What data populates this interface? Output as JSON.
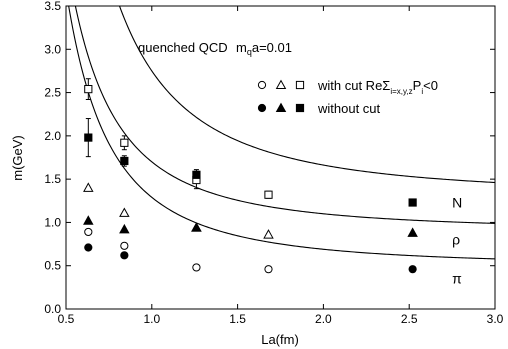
{
  "chart_data": {
    "type": "scatter",
    "title": "quenched QCD",
    "param_prefix": "m",
    "param_sub": "q",
    "param_suffix": "a=0.01",
    "xlabel": "La(fm)",
    "ylabel": "m(GeV)",
    "xlim": [
      0.5,
      3.0
    ],
    "ylim": [
      0.0,
      3.5
    ],
    "x_ticks": [
      0.5,
      1.0,
      1.5,
      2.0,
      2.5,
      3.0
    ],
    "y_ticks": [
      0.0,
      0.5,
      1.0,
      1.5,
      2.0,
      2.5,
      3.0,
      3.5
    ],
    "x_tick_labels": [
      "0.5",
      "1.0",
      "1.5",
      "2.0",
      "2.5",
      "3.0"
    ],
    "y_tick_labels": [
      "0.0",
      "0.5",
      "1.0",
      "1.5",
      "2.0",
      "2.5",
      "3.0",
      "3.5"
    ],
    "legend": {
      "with_cut": {
        "text_main": "with cut ReΣ",
        "sub1": "i=x,y,z",
        "mid": "P",
        "sub2": "i",
        "tail": "<0"
      },
      "without_cut": "without cut"
    },
    "series": [
      {
        "name": "π",
        "cut": "with",
        "marker": "circle-open",
        "x": [
          0.63,
          0.84,
          1.26,
          1.68
        ],
        "y": [
          0.89,
          0.73,
          0.48,
          0.46
        ]
      },
      {
        "name": "π",
        "cut": "without",
        "marker": "circle-filled",
        "x": [
          0.63,
          0.84,
          2.52
        ],
        "y": [
          0.71,
          0.62,
          0.46
        ]
      },
      {
        "name": "ρ",
        "cut": "with",
        "marker": "triangle-open",
        "x": [
          0.63,
          0.84,
          1.26,
          1.68
        ],
        "y": [
          1.4,
          1.11,
          0.94,
          0.86
        ]
      },
      {
        "name": "ρ",
        "cut": "without",
        "marker": "triangle-filled",
        "x": [
          0.63,
          0.84,
          1.26,
          2.52
        ],
        "y": [
          1.02,
          0.92,
          0.94,
          0.88
        ]
      },
      {
        "name": "N",
        "cut": "with",
        "marker": "square-open",
        "x": [
          0.63,
          0.84,
          1.26,
          1.68
        ],
        "y": [
          2.54,
          1.92,
          1.49,
          1.32
        ],
        "err": [
          0.12,
          0.08,
          0.1,
          0.04
        ]
      },
      {
        "name": "N",
        "cut": "without",
        "marker": "square-filled",
        "x": [
          0.63,
          0.84,
          1.26,
          2.52
        ],
        "y": [
          1.98,
          1.71,
          1.55,
          1.23
        ],
        "err": [
          0.22,
          0.06,
          0.06,
          0.0
        ]
      }
    ],
    "fit_curves": [
      {
        "label": "N",
        "asymptote": 1.3
      },
      {
        "label": "ρ",
        "asymptote": 0.9
      },
      {
        "label": "π",
        "asymptote": 0.49
      }
    ],
    "grid": false
  }
}
